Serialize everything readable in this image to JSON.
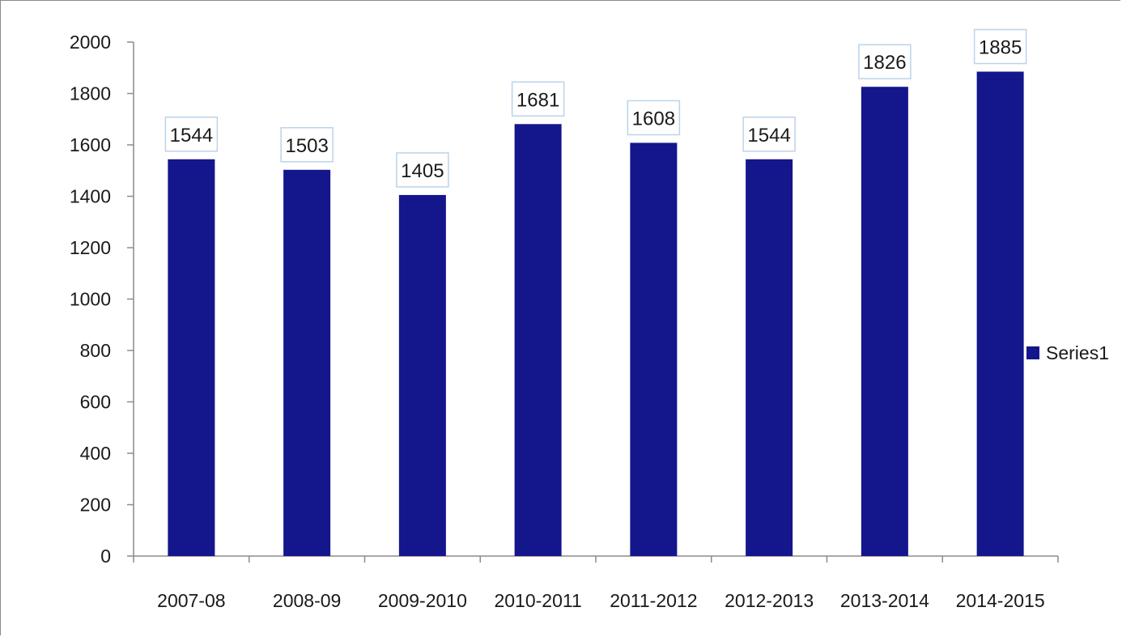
{
  "chart_data": {
    "type": "bar",
    "categories": [
      "2007-08",
      "2008-09",
      "2009-2010",
      "2010-2011",
      "2011-2012",
      "2012-2013",
      "2013-2014",
      "2014-2015"
    ],
    "series": [
      {
        "name": "Series1",
        "values": [
          1544,
          1503,
          1405,
          1681,
          1608,
          1544,
          1826,
          1885
        ],
        "color": "#14168c"
      }
    ],
    "ylim": [
      0,
      2000
    ],
    "yticks": [
      0,
      200,
      400,
      600,
      800,
      1000,
      1200,
      1400,
      1600,
      1800,
      2000
    ],
    "grid": false,
    "legend_position": "right",
    "data_labels": true,
    "title": "",
    "xlabel": "",
    "ylabel": ""
  }
}
